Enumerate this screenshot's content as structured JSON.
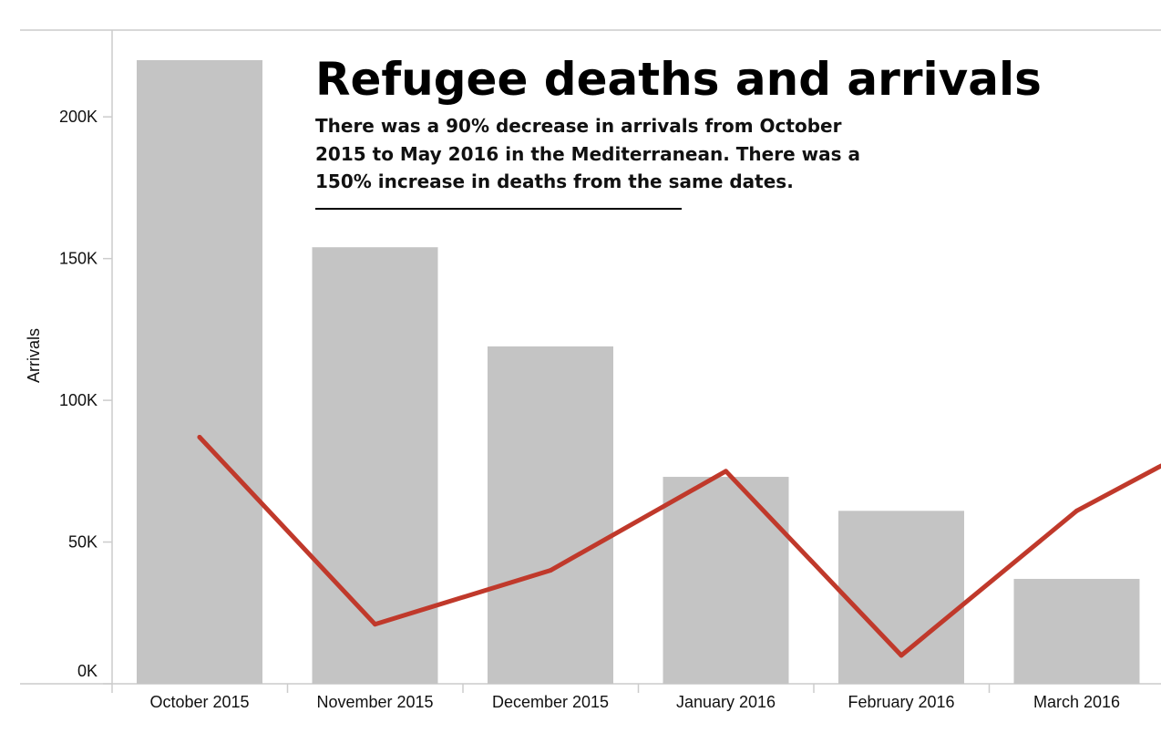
{
  "chart_data": {
    "type": "bar",
    "title": "Refugee deaths and arrivals",
    "subtitle_lines": [
      "There was a 90% decrease in arrivals from October",
      "2015 to May 2016 in the Mediterranean. There was a",
      "150% increase in deaths from the same dates."
    ],
    "ylabel": "Arrivals",
    "xlabel": "",
    "ylim": [
      0,
      220000
    ],
    "yticks": [
      {
        "value": 0,
        "label": "0K"
      },
      {
        "value": 50000,
        "label": "50K"
      },
      {
        "value": 100000,
        "label": "100K"
      },
      {
        "value": 150000,
        "label": "150K"
      },
      {
        "value": 200000,
        "label": "200K"
      }
    ],
    "categories": [
      "October 2015",
      "November 2015",
      "December 2015",
      "January 2016",
      "February 2016",
      "March 2016"
    ],
    "series": [
      {
        "kind": "bar",
        "values": [
          220000,
          154000,
          119000,
          73000,
          61000,
          37000
        ],
        "color": "#c4c4c4"
      },
      {
        "kind": "line",
        "values": [
          87000,
          21000,
          40000,
          75000,
          10000,
          61000
        ],
        "trailing_value": 94000,
        "color": "#c0392b"
      }
    ],
    "grid": false
  }
}
